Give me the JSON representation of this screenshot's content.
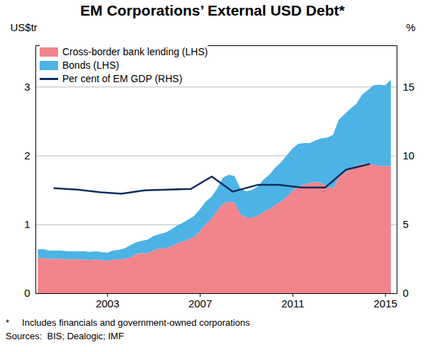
{
  "chart_data": {
    "type": "area",
    "title": "EM Corporations’ External USD Debt*",
    "ylabel": "US$tr",
    "y2label": "%",
    "footnote": "*     Includes financials and government-owned corporations",
    "sources": "Sources:  BIS; Dealogic; IMF",
    "stacked": true,
    "grid": true,
    "legend": "top-left",
    "xlim": [
      1999.9,
      2015.5
    ],
    "xticks": [
      2003,
      2007,
      2011,
      2015
    ],
    "ylim": [
      0,
      3.6
    ],
    "yticks": [
      0,
      1,
      2,
      3
    ],
    "y2lim": [
      0,
      18
    ],
    "y2ticks": [
      0,
      5,
      10,
      15
    ],
    "x": [
      2000,
      2000.25,
      2000.5,
      2000.75,
      2001,
      2001.25,
      2001.5,
      2001.75,
      2002,
      2002.25,
      2002.5,
      2002.75,
      2003,
      2003.25,
      2003.5,
      2003.75,
      2004,
      2004.25,
      2004.5,
      2004.75,
      2005,
      2005.25,
      2005.5,
      2005.75,
      2006,
      2006.25,
      2006.5,
      2006.75,
      2007,
      2007.25,
      2007.5,
      2007.75,
      2008,
      2008.25,
      2008.5,
      2008.75,
      2009,
      2009.25,
      2009.5,
      2009.75,
      2010,
      2010.25,
      2010.5,
      2010.75,
      2011,
      2011.25,
      2011.5,
      2011.75,
      2012,
      2012.25,
      2012.5,
      2012.75,
      2013,
      2013.25,
      2013.5,
      2013.75,
      2014,
      2014.25,
      2014.5,
      2014.75,
      2015,
      2015.25
    ],
    "series": [
      {
        "name": "Cross-border bank lending (LHS)",
        "type": "area",
        "color": "#f2848b",
        "values": [
          0.52,
          0.51,
          0.5,
          0.5,
          0.5,
          0.49,
          0.49,
          0.49,
          0.49,
          0.48,
          0.49,
          0.48,
          0.47,
          0.49,
          0.49,
          0.5,
          0.52,
          0.57,
          0.58,
          0.58,
          0.62,
          0.65,
          0.65,
          0.68,
          0.72,
          0.75,
          0.78,
          0.82,
          0.9,
          1.0,
          1.08,
          1.2,
          1.3,
          1.33,
          1.32,
          1.15,
          1.1,
          1.1,
          1.12,
          1.18,
          1.22,
          1.28,
          1.33,
          1.4,
          1.48,
          1.55,
          1.58,
          1.6,
          1.62,
          1.6,
          1.55,
          1.52,
          1.68,
          1.75,
          1.8,
          1.85,
          1.88,
          1.88,
          1.87,
          1.85,
          1.85,
          1.85
        ]
      },
      {
        "name": "Bonds (LHS)",
        "type": "area",
        "color": "#4db3e4",
        "values": [
          0.12,
          0.13,
          0.12,
          0.12,
          0.12,
          0.12,
          0.12,
          0.12,
          0.12,
          0.12,
          0.12,
          0.12,
          0.12,
          0.13,
          0.14,
          0.15,
          0.18,
          0.17,
          0.18,
          0.2,
          0.21,
          0.21,
          0.23,
          0.24,
          0.26,
          0.27,
          0.29,
          0.3,
          0.32,
          0.33,
          0.32,
          0.32,
          0.38,
          0.39,
          0.38,
          0.37,
          0.38,
          0.4,
          0.43,
          0.47,
          0.5,
          0.54,
          0.57,
          0.6,
          0.62,
          0.62,
          0.6,
          0.58,
          0.6,
          0.65,
          0.71,
          0.78,
          0.84,
          0.85,
          0.88,
          0.9,
          1.0,
          1.07,
          1.15,
          1.18,
          1.17,
          1.25
        ]
      },
      {
        "name": "Per cent of EM GDP (RHS)",
        "type": "line",
        "axis": "y2",
        "color": "#0e2d5e",
        "x": [
          2000.7,
          2001.7,
          2002.7,
          2003.6,
          2004.6,
          2005.6,
          2006.6,
          2007.5,
          2008.4,
          2009.5,
          2010.4,
          2011.4,
          2012.4,
          2013.3,
          2014.3
        ],
        "values": [
          7.65,
          7.55,
          7.35,
          7.25,
          7.5,
          7.55,
          7.6,
          8.5,
          7.4,
          7.9,
          7.9,
          7.7,
          7.7,
          9.0,
          9.4
        ]
      }
    ]
  }
}
